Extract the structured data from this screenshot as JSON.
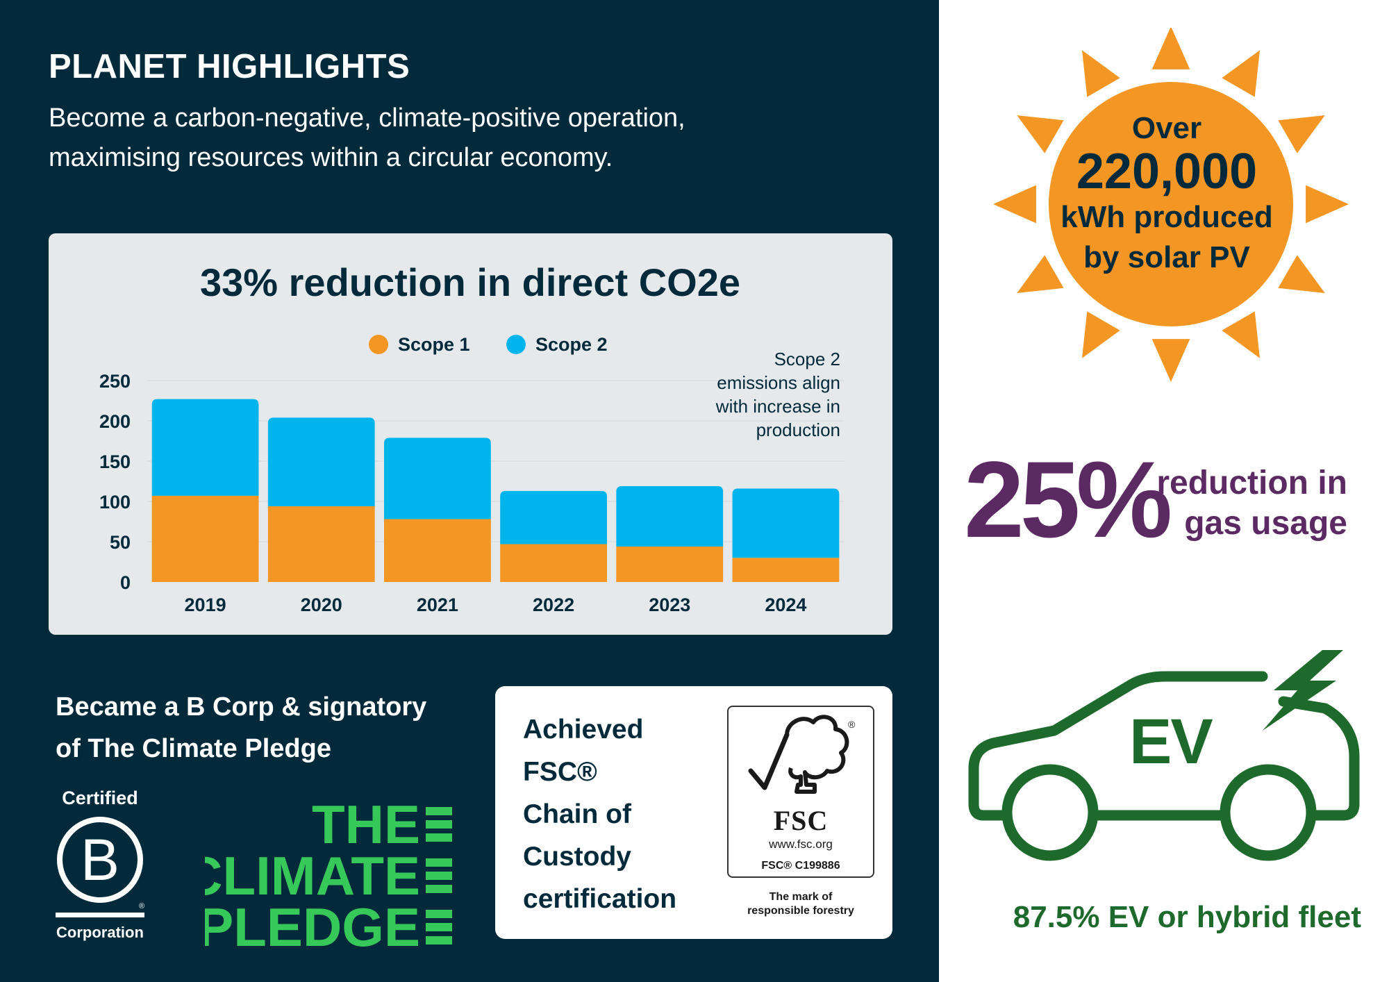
{
  "header": {
    "title": "PLANET HIGHLIGHTS",
    "subtitle": "Become a carbon-negative, climate-positive operation, maximising resources within a circular economy."
  },
  "chart_data": {
    "type": "bar",
    "stacked": true,
    "title": "33% reduction in direct CO2e",
    "categories": [
      "2019",
      "2020",
      "2021",
      "2022",
      "2023",
      "2024"
    ],
    "series": [
      {
        "name": "Scope 1",
        "color": "#f39623",
        "values": [
          107,
          94,
          78,
          47,
          44,
          30
        ]
      },
      {
        "name": "Scope 2",
        "color": "#00b5ec",
        "values": [
          120,
          110,
          101,
          66,
          75,
          86
        ]
      }
    ],
    "ylim": [
      0,
      250
    ],
    "yticks": [
      "0",
      "50",
      "100",
      "150",
      "200",
      "250"
    ],
    "grid": true,
    "legend": "top",
    "annotation": [
      "Scope 2",
      "emissions align",
      "with increase in",
      "production"
    ]
  },
  "bcorp": {
    "title_line1": "Became a B Corp & signatory",
    "title_line2": "of The Climate Pledge",
    "logo_top": "Certified",
    "logo_letter": "B",
    "logo_bottom": "Corporation",
    "logo_mark": "®"
  },
  "pledge_logo": {
    "line1": "THE",
    "line2": "CLIMATE",
    "line3": "PLEDGE"
  },
  "fsc": {
    "text_lines": [
      "Achieved",
      "FSC®",
      "Chain of",
      "Custody",
      "certification"
    ],
    "logo_name": "FSC",
    "logo_url": "www.fsc.org",
    "logo_code": "FSC® C199886",
    "logo_tagline_1": "The mark of",
    "logo_tagline_2": "responsible forestry"
  },
  "solar": {
    "line1": "Over",
    "value": "220,000",
    "line3": "kWh produced",
    "line4": "by solar PV"
  },
  "gas": {
    "percent": "25%",
    "line1": "reduction in",
    "line2": "gas usage"
  },
  "ev": {
    "label": "EV",
    "caption": "87.5% EV or hybrid fleet"
  },
  "colors": {
    "navy": "#022a3b",
    "orange": "#f39623",
    "blue": "#00b5ec",
    "purple": "#5b2a62",
    "green": "#1e6a2c",
    "pledge_green": "#37c85a"
  }
}
